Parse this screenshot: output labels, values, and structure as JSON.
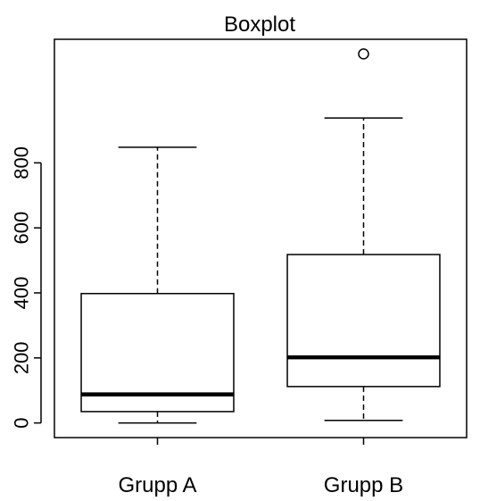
{
  "chart_data": {
    "type": "boxplot",
    "title": "Boxplot",
    "xlabel": "",
    "ylabel": "",
    "categories": [
      "Grupp A",
      "Grupp B"
    ],
    "series": [
      {
        "name": "Grupp A",
        "whisker_low": 0,
        "q1": 35,
        "median": 88,
        "q3": 398,
        "whisker_high": 848,
        "outliers": []
      },
      {
        "name": "Grupp B",
        "whisker_low": 8,
        "q1": 112,
        "median": 202,
        "q3": 518,
        "whisker_high": 938,
        "outliers": [
          1135
        ]
      }
    ],
    "yticks": [
      0,
      200,
      400,
      600,
      800
    ],
    "ylim": [
      -45,
      1180
    ],
    "grid": false,
    "legend": "none"
  }
}
